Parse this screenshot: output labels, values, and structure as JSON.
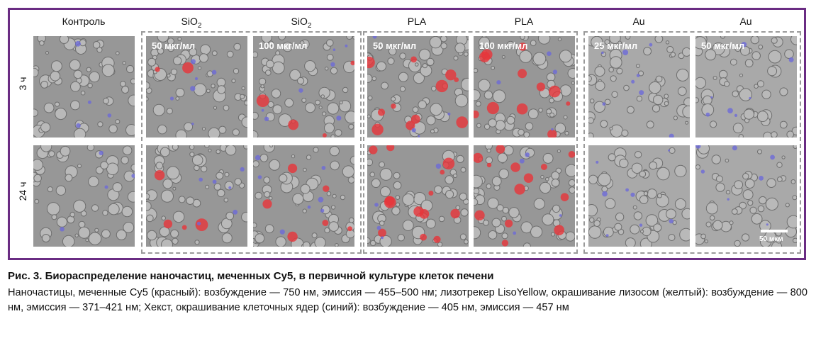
{
  "columns": [
    {
      "label": "Контроль"
    },
    {
      "label": "SiO2"
    },
    {
      "label": "SiO2"
    },
    {
      "label": "PLA"
    },
    {
      "label": "PLA"
    },
    {
      "label": "Au"
    },
    {
      "label": "Au"
    }
  ],
  "rows": [
    {
      "label": "3 ч"
    },
    {
      "label": "24 ч"
    }
  ],
  "concentrations": [
    "50 мкг/мл",
    "100 мкг/мл",
    "50 мкг/мл",
    "100 мкг/мл",
    "25 мкг/мл",
    "50 мкг/мл"
  ],
  "scale_bar": "50 мкм",
  "caption": {
    "title": "Рис. 3. Биораспределение наночастиц, меченных Cy5, в первичной культуре клеток печени",
    "text": "Наночастицы, меченные Cy5 (красный): возбуждение — 750 нм, эмиссия — 455–500 нм; лизотрекер LisoYellow, окрашивание лизосом (желтый): возбуждение — 800 нм, эмиссия — 371–421 нм; Хекст, окрашивание клеточных ядер (синий): возбуждение — 405 нм, эмиссия — 457 нм"
  },
  "colors": {
    "frame": "#6a2c83",
    "red_signal": "#e8343a",
    "blue_signal": "#6d6ad8"
  }
}
